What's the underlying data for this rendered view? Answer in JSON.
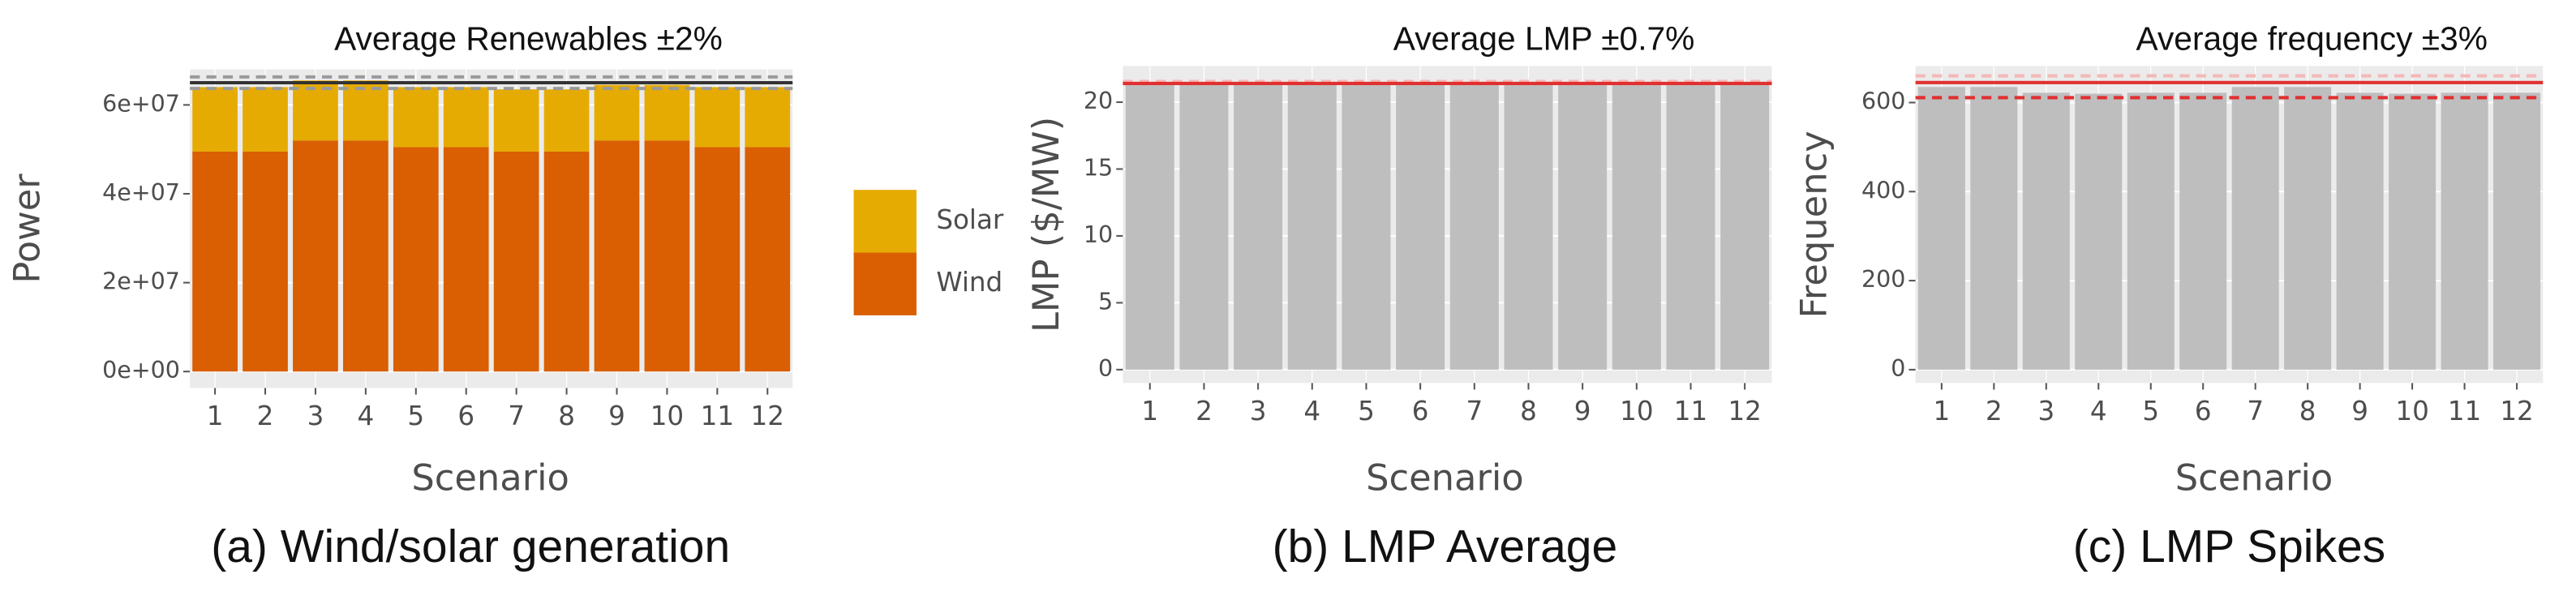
{
  "chart_data": [
    {
      "type": "bar",
      "stacked": true,
      "title": "Average Renewables ±2%",
      "caption": "(a) Wind/solar generation",
      "xlabel": "Scenario",
      "ylabel": "Power",
      "categories": [
        "1",
        "2",
        "3",
        "4",
        "5",
        "6",
        "7",
        "8",
        "9",
        "10",
        "11",
        "12"
      ],
      "series": [
        {
          "name": "Wind",
          "color": "#d95f02",
          "values": [
            49500000,
            49500000,
            52000000,
            52000000,
            50500000,
            50500000,
            49500000,
            49500000,
            52000000,
            52000000,
            50500000,
            50500000
          ]
        },
        {
          "name": "Solar",
          "color": "#e6ab02",
          "values": [
            14500000,
            14500000,
            13500000,
            13500000,
            13500000,
            13500000,
            14000000,
            14000000,
            12500000,
            12500000,
            13500000,
            13500000
          ]
        }
      ],
      "ylim": [
        -3700000,
        68000000
      ],
      "yticks": [
        {
          "value": 0,
          "label": "0e+00"
        },
        {
          "value": 20000000,
          "label": "2e+07"
        },
        {
          "value": 40000000,
          "label": "4e+07"
        },
        {
          "value": 60000000,
          "label": "6e+07"
        }
      ],
      "ref_lines": [
        {
          "value": 66300000,
          "color": "#9a9a9a",
          "dashed": true
        },
        {
          "value": 65000000,
          "color": "#333333",
          "dashed": false
        },
        {
          "value": 63700000,
          "color": "#9a9a9a",
          "dashed": true
        }
      ],
      "legend": "right",
      "grid": true
    },
    {
      "type": "bar",
      "title": "Average LMP ±0.7%",
      "caption": "(b) LMP Average",
      "xlabel": "Scenario",
      "ylabel": "LMP ($/MW)",
      "categories": [
        "1",
        "2",
        "3",
        "4",
        "5",
        "6",
        "7",
        "8",
        "9",
        "10",
        "11",
        "12"
      ],
      "series": [
        {
          "name": "LMP",
          "color": "#bebebe",
          "values": [
            21.4,
            21.4,
            21.3,
            21.4,
            21.4,
            21.4,
            21.4,
            21.4,
            21.4,
            21.4,
            21.4,
            21.4
          ]
        }
      ],
      "ylim": [
        -1,
        22.7
      ],
      "yticks": [
        0,
        5,
        10,
        15,
        20
      ],
      "ref_lines": [
        {
          "value": 21.55,
          "color": "#f4b8b8",
          "dashed": true
        },
        {
          "value": 21.4,
          "color": "#e03030",
          "dashed": false
        }
      ],
      "grid": true
    },
    {
      "type": "bar",
      "title": "Average frequency ±3%",
      "caption": "(c) LMP Spikes",
      "xlabel": "Scenario",
      "ylabel": "Frequency",
      "categories": [
        "1",
        "2",
        "3",
        "4",
        "5",
        "6",
        "7",
        "8",
        "9",
        "10",
        "11",
        "12"
      ],
      "series": [
        {
          "name": "Frequency",
          "color": "#bebebe",
          "values": [
            635,
            635,
            622,
            620,
            622,
            622,
            635,
            635,
            622,
            620,
            622,
            622
          ]
        }
      ],
      "ylim": [
        -30,
        682
      ],
      "yticks": [
        0,
        200,
        400,
        600
      ],
      "ref_lines": [
        {
          "value": 660,
          "color": "#f4b8b8",
          "dashed": true
        },
        {
          "value": 645,
          "color": "#e03030",
          "dashed": false
        },
        {
          "value": 611,
          "color": "#e03030",
          "dashed": true
        }
      ],
      "grid": true
    }
  ]
}
